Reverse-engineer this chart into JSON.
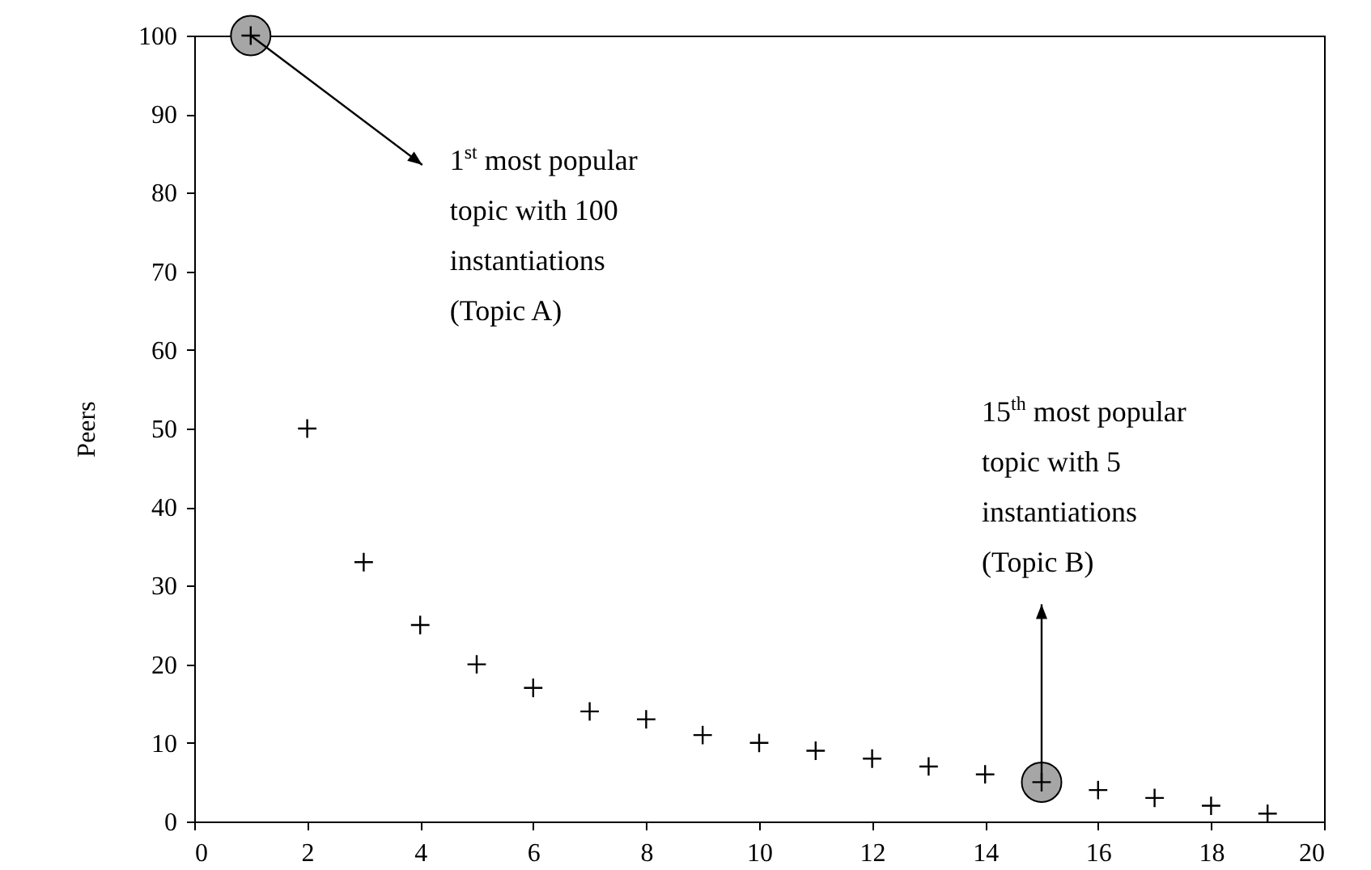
{
  "chart_data": {
    "type": "scatter",
    "ylabel": "Peers",
    "xlim": [
      0,
      20
    ],
    "xticks": [
      0,
      2,
      4,
      6,
      8,
      10,
      12,
      14,
      16,
      18,
      20
    ],
    "ylim": [
      0,
      100
    ],
    "yticks": [
      0,
      10,
      20,
      30,
      40,
      50,
      60,
      70,
      80,
      90,
      100
    ],
    "grid": false,
    "series": [
      {
        "marker": "circle",
        "color": "#a6a6a6",
        "x": [
          1,
          15
        ],
        "values": [
          100,
          5
        ]
      },
      {
        "marker": "cross",
        "color": "#000000",
        "x": [
          1,
          2,
          3,
          4,
          5,
          6,
          7,
          8,
          9,
          10,
          11,
          12,
          13,
          14,
          15,
          16,
          17,
          18,
          19
        ],
        "values": [
          100,
          50,
          33,
          25,
          20,
          17,
          14,
          13,
          11,
          10,
          9,
          8,
          7,
          6,
          5,
          4,
          3,
          2,
          1
        ]
      }
    ],
    "annotations": [
      {
        "text": "1$^{st}$ most popular topic with 100 instantiations (Topic A)",
        "x": 1,
        "y": 100
      },
      {
        "text": "15$^{th}$ most popular topic with 5 instantiations (Topic B)",
        "x": 15,
        "y": 5
      }
    ]
  }
}
